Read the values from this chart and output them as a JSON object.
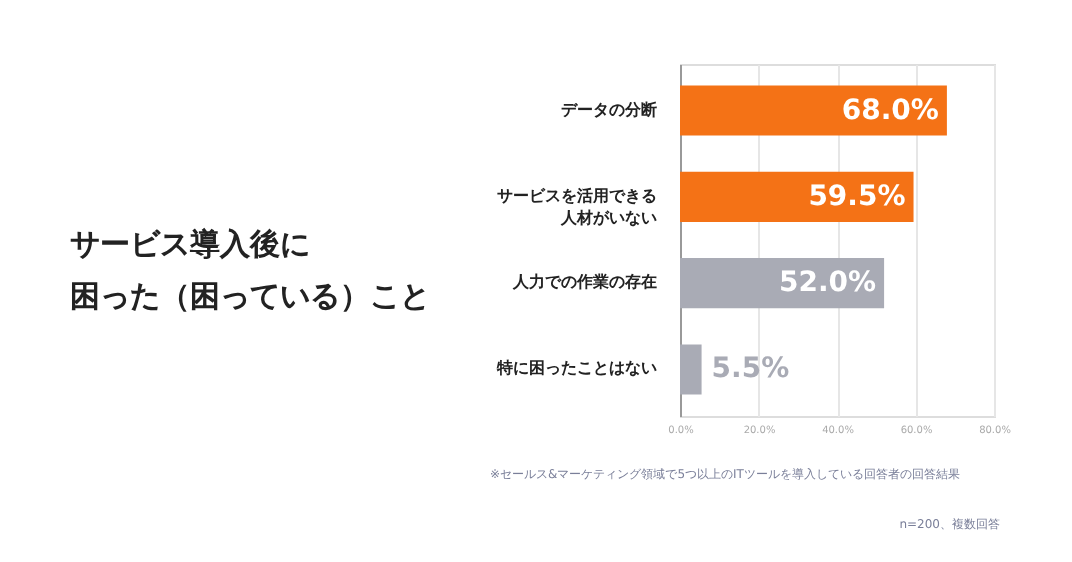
{
  "chart_data": {
    "type": "bar",
    "orientation": "horizontal",
    "title": "サービス導入後に困った（困っている）こと",
    "categories": [
      "データの分断",
      "サービスを活用できる人材がいない",
      "人力での作業の存在",
      "特に困ったことはない"
    ],
    "values": [
      68.0,
      59.5,
      52.0,
      5.5
    ],
    "colors": [
      "#f47216",
      "#f47216",
      "#a9abb5",
      "#a9abb5"
    ],
    "value_labels": [
      "68.0%",
      "59.5%",
      "52.0%",
      "5.5%"
    ],
    "xlim": [
      0,
      80
    ],
    "xticks": [
      {
        "value": 0,
        "label": "0.0%"
      },
      {
        "value": 20,
        "label": "20.0%"
      },
      {
        "value": 40,
        "label": "40.0%"
      },
      {
        "value": 60,
        "label": "60.0%"
      },
      {
        "value": 80,
        "label": "80.0%"
      }
    ],
    "grid": "x",
    "annotations": [
      "※セールス&マーケティング領域で5つ以上のITツールを導入している回答者の回答結果",
      "n=200、複数回答"
    ]
  }
}
